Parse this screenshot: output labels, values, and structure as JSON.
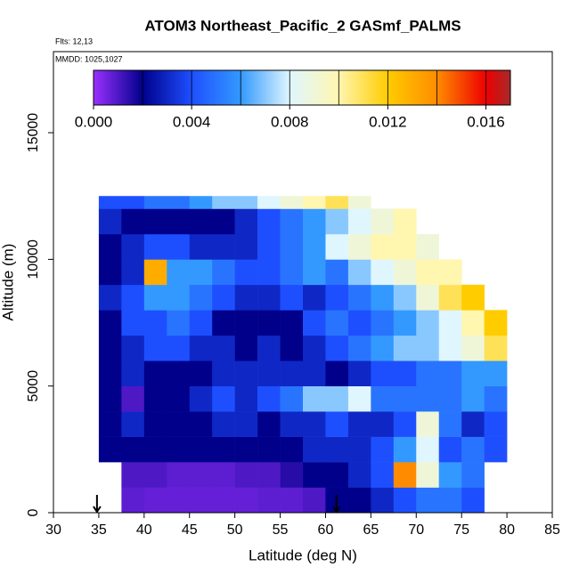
{
  "chart_data": {
    "type": "heatmap",
    "title": "ATOM3 Northeast_Pacific_2 GASmf_PALMS",
    "flights": "Flts: 12,13",
    "dates": "MMDD: 1025,1027",
    "xlabel": "Latitude (deg N)",
    "ylabel": "Altitude (m)",
    "xlim": [
      30,
      85
    ],
    "xticks": [
      30,
      35,
      40,
      45,
      50,
      55,
      60,
      65,
      70,
      75,
      80,
      85
    ],
    "ylim": [
      0,
      18200
    ],
    "yticks": [
      0,
      5000,
      10000,
      15000
    ],
    "x_edges": [
      35,
      37.5,
      40,
      42.5,
      45,
      47.5,
      50,
      52.5,
      55,
      57.5,
      60,
      62.5,
      65,
      67.5,
      70,
      72.5,
      75,
      77.5,
      80
    ],
    "y_edges": [
      0,
      1000,
      2000,
      3000,
      4000,
      5000,
      6000,
      7000,
      8000,
      9000,
      10000,
      11000,
      12000,
      12500
    ],
    "z": [
      [
        null,
        0.0008,
        0.0007,
        0.0007,
        0.0007,
        0.0007,
        0.0007,
        0.0008,
        0.0008,
        0.001,
        0.002,
        0.002,
        0.003,
        0.004,
        0.005,
        0.005,
        0.004,
        null
      ],
      [
        null,
        0.001,
        0.001,
        0.0008,
        0.0008,
        0.0008,
        0.001,
        0.001,
        0.0015,
        0.002,
        0.002,
        0.003,
        0.004,
        0.014,
        0.009,
        0.006,
        0.005,
        null
      ],
      [
        0.002,
        0.002,
        0.002,
        0.002,
        0.002,
        0.002,
        0.002,
        0.002,
        0.002,
        0.003,
        0.003,
        0.003,
        0.004,
        0.006,
        0.008,
        0.004,
        0.005,
        0.004
      ],
      [
        0.002,
        0.003,
        0.002,
        0.002,
        0.002,
        0.003,
        0.003,
        0.002,
        0.003,
        0.003,
        0.004,
        0.003,
        0.003,
        0.004,
        0.009,
        0.005,
        0.003,
        0.004
      ],
      [
        0.002,
        0.001,
        0.002,
        0.002,
        0.003,
        0.004,
        0.003,
        0.004,
        0.005,
        0.007,
        0.007,
        0.008,
        0.005,
        0.005,
        0.005,
        0.005,
        0.006,
        0.005
      ],
      [
        0.002,
        0.003,
        0.002,
        0.002,
        0.002,
        0.003,
        0.003,
        0.003,
        0.003,
        0.003,
        0.002,
        0.003,
        0.004,
        0.004,
        0.005,
        0.005,
        0.006,
        0.006
      ],
      [
        0.002,
        0.003,
        0.004,
        0.004,
        0.003,
        0.003,
        0.002,
        0.003,
        0.002,
        0.003,
        0.004,
        0.005,
        0.006,
        0.007,
        0.007,
        0.008,
        0.009,
        0.011
      ],
      [
        0.002,
        0.004,
        0.004,
        0.005,
        0.004,
        0.002,
        0.002,
        0.002,
        0.002,
        0.004,
        0.005,
        0.004,
        0.005,
        0.006,
        0.007,
        0.008,
        0.01,
        0.012
      ],
      [
        0.003,
        0.004,
        0.006,
        0.006,
        0.005,
        0.004,
        0.003,
        0.003,
        0.004,
        0.003,
        0.004,
        0.005,
        0.006,
        0.007,
        0.009,
        0.011,
        0.012,
        null
      ],
      [
        0.002,
        0.003,
        0.013,
        0.006,
        0.006,
        0.005,
        0.004,
        0.004,
        0.005,
        0.006,
        0.005,
        0.007,
        0.008,
        0.009,
        0.01,
        0.01,
        null,
        null
      ],
      [
        0.002,
        0.003,
        0.004,
        0.004,
        0.003,
        0.003,
        0.003,
        0.004,
        0.005,
        0.006,
        0.008,
        0.009,
        0.01,
        0.01,
        0.009,
        null,
        null,
        null
      ],
      [
        0.003,
        0.002,
        0.002,
        0.002,
        0.002,
        0.002,
        0.003,
        0.004,
        0.005,
        0.006,
        0.007,
        0.008,
        0.009,
        0.01,
        null,
        null,
        null,
        null
      ],
      [
        0.004,
        0.004,
        0.005,
        0.005,
        0.006,
        0.007,
        0.007,
        0.008,
        0.009,
        0.01,
        0.011,
        0.009,
        null,
        null,
        null,
        null,
        null,
        null
      ]
    ],
    "clim": [
      0,
      0.017
    ],
    "cticks": [
      {
        "value": 0,
        "label": "0.000"
      },
      0.004,
      0.008,
      0.012,
      0.016
    ],
    "color_stops": [
      0,
      0.002,
      0.004,
      0.006,
      0.008,
      0.01,
      0.012,
      0.014,
      0.016,
      0.017
    ],
    "color_list": [
      "#9b30ff",
      "#00008b",
      "#1e4fff",
      "#3399ff",
      "#dff6ff",
      "#fff6b0",
      "#ffcc00",
      "#ff8c00",
      "#ee0000",
      "#a52a2a"
    ],
    "arrows": [
      34.8,
      61.2
    ]
  }
}
